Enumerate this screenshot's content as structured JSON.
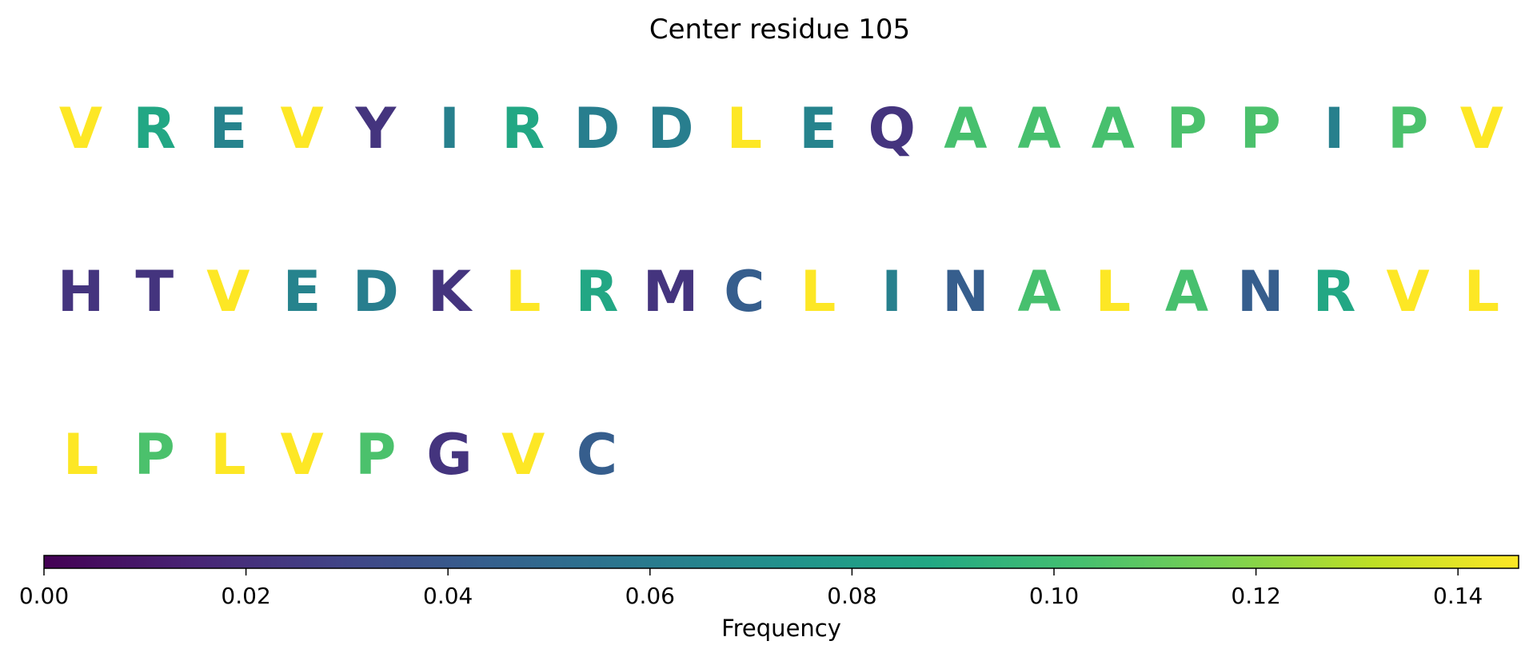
{
  "chart_data": {
    "type": "heatmap",
    "title": "Center residue 105",
    "residues": [
      {
        "letter": "V",
        "frequency": 0.146
      },
      {
        "letter": "R",
        "frequency": 0.087
      },
      {
        "letter": "E",
        "frequency": 0.065
      },
      {
        "letter": "V",
        "frequency": 0.146
      },
      {
        "letter": "Y",
        "frequency": 0.022
      },
      {
        "letter": "I",
        "frequency": 0.063
      },
      {
        "letter": "R",
        "frequency": 0.087
      },
      {
        "letter": "D",
        "frequency": 0.062
      },
      {
        "letter": "D",
        "frequency": 0.062
      },
      {
        "letter": "L",
        "frequency": 0.146
      },
      {
        "letter": "E",
        "frequency": 0.065
      },
      {
        "letter": "Q",
        "frequency": 0.022
      },
      {
        "letter": "A",
        "frequency": 0.103
      },
      {
        "letter": "A",
        "frequency": 0.103
      },
      {
        "letter": "A",
        "frequency": 0.103
      },
      {
        "letter": "P",
        "frequency": 0.104
      },
      {
        "letter": "P",
        "frequency": 0.104
      },
      {
        "letter": "I",
        "frequency": 0.063
      },
      {
        "letter": "P",
        "frequency": 0.104
      },
      {
        "letter": "V",
        "frequency": 0.146
      },
      {
        "letter": "H",
        "frequency": 0.022
      },
      {
        "letter": "T",
        "frequency": 0.022
      },
      {
        "letter": "V",
        "frequency": 0.146
      },
      {
        "letter": "E",
        "frequency": 0.065
      },
      {
        "letter": "D",
        "frequency": 0.062
      },
      {
        "letter": "K",
        "frequency": 0.022
      },
      {
        "letter": "L",
        "frequency": 0.146
      },
      {
        "letter": "R",
        "frequency": 0.087
      },
      {
        "letter": "M",
        "frequency": 0.022
      },
      {
        "letter": "C",
        "frequency": 0.043
      },
      {
        "letter": "L",
        "frequency": 0.146
      },
      {
        "letter": "I",
        "frequency": 0.063
      },
      {
        "letter": "N",
        "frequency": 0.043
      },
      {
        "letter": "A",
        "frequency": 0.103
      },
      {
        "letter": "L",
        "frequency": 0.146
      },
      {
        "letter": "A",
        "frequency": 0.103
      },
      {
        "letter": "N",
        "frequency": 0.043
      },
      {
        "letter": "R",
        "frequency": 0.087
      },
      {
        "letter": "V",
        "frequency": 0.146
      },
      {
        "letter": "L",
        "frequency": 0.146
      },
      {
        "letter": "L",
        "frequency": 0.146
      },
      {
        "letter": "P",
        "frequency": 0.104
      },
      {
        "letter": "L",
        "frequency": 0.146
      },
      {
        "letter": "V",
        "frequency": 0.146
      },
      {
        "letter": "P",
        "frequency": 0.104
      },
      {
        "letter": "G",
        "frequency": 0.022
      },
      {
        "letter": "V",
        "frequency": 0.146
      },
      {
        "letter": "C",
        "frequency": 0.043
      }
    ],
    "letters_per_row": 20,
    "colorbar": {
      "label": "Frequency",
      "colormap": "viridis",
      "range": [
        0,
        0.146
      ],
      "ticks": [
        0.0,
        0.02,
        0.04,
        0.06,
        0.08,
        0.1,
        0.12,
        0.14
      ],
      "tick_labels": [
        "0.00",
        "0.02",
        "0.04",
        "0.06",
        "0.08",
        "0.10",
        "0.12",
        "0.14"
      ],
      "orientation": "horizontal"
    }
  }
}
